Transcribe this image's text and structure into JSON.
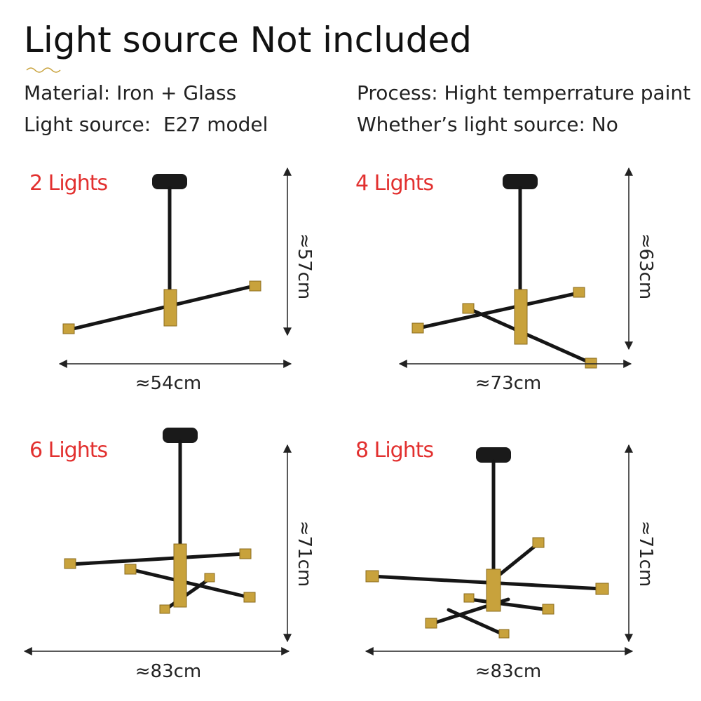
{
  "title": "Light source Not included",
  "specs": [
    "Material: Iron + Glass",
    "Process: Hight temperrature paint",
    "Light source:  E27 model",
    "Whether’s light source: No"
  ],
  "panels": [
    {
      "label": "2 Lights",
      "height": "≈57cm",
      "width": "≈54cm"
    },
    {
      "label": "4 Lights",
      "height": "≈63cm",
      "width": "≈73cm"
    },
    {
      "label": "6 Lights",
      "height": "≈71cm",
      "width": "≈83cm"
    },
    {
      "label": "8 Lights",
      "height": "≈71cm",
      "width": "≈83cm"
    }
  ]
}
